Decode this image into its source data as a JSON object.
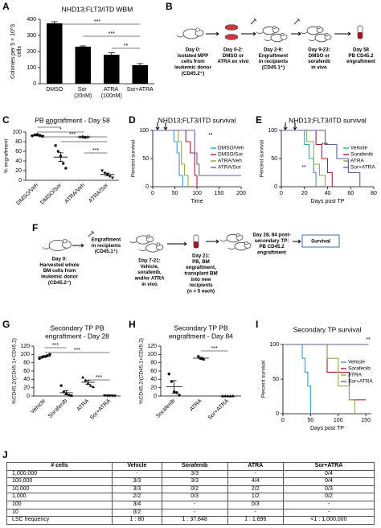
{
  "panel_labels": [
    "A",
    "B",
    "C",
    "D",
    "E",
    "F",
    "G",
    "H",
    "I",
    "J"
  ],
  "chart_data": [
    {
      "type": "bar",
      "title": "NHD13;FLT3/ITD WBM",
      "ylabel": [
        "Colonies per 5 × 10^3",
        "cells"
      ],
      "categories": [
        "DMSO",
        "Sor (20nM)",
        "ATRA (100nM)",
        "Sor+ATRA"
      ],
      "values": [
        375,
        230,
        180,
        115
      ],
      "errors": [
        10,
        5,
        12,
        10
      ],
      "color": "#000000",
      "ylim": [
        0,
        400
      ],
      "yticks": [
        0,
        100,
        200,
        300,
        400
      ],
      "annotations": [
        "***",
        "***",
        "**"
      ]
    },
    {
      "type": "dot",
      "title": "PB engraftment - Day 58",
      "ylabel": "% engraftment",
      "categories": [
        "DMSO/Veh",
        "DMSO/Sor",
        "ATRA/Veh",
        "ATRA/Sor"
      ],
      "points": [
        [
          92,
          94,
          95,
          93,
          91
        ],
        [
          72,
          60,
          50,
          35,
          25
        ],
        [
          90,
          91,
          89,
          90
        ],
        [
          20,
          15,
          12,
          8,
          5
        ]
      ],
      "means": [
        93,
        48,
        90,
        12
      ],
      "errors": [
        1,
        9,
        0.5,
        3
      ],
      "ylim": [
        0,
        100
      ],
      "yticks": [
        0,
        20,
        40,
        60,
        80,
        100
      ],
      "annotations": [
        "***",
        "*",
        "***",
        "**",
        "***"
      ]
    },
    {
      "type": "survival",
      "title": "NHD13;FLT3/ITD survival",
      "xlabel": "Time",
      "ylabel": "Percent survival",
      "xlim": [
        0,
        200
      ],
      "xticks": [
        0,
        50,
        100,
        150,
        200
      ],
      "ylim": [
        0,
        100
      ],
      "yticks": [
        0,
        50,
        100
      ],
      "series": [
        {
          "name": "DMSO/Veh",
          "color": "#3b9cc4",
          "x": [
            0,
            48,
            55,
            60,
            68
          ],
          "values": [
            100,
            80,
            60,
            20,
            0
          ]
        },
        {
          "name": "DMSO/Sor",
          "color": "#a3203f",
          "x": [
            0,
            75,
            85,
            95,
            100
          ],
          "values": [
            100,
            80,
            60,
            20,
            0
          ]
        },
        {
          "name": "ATRA/Veh",
          "color": "#93a84a",
          "x": [
            0,
            58,
            65,
            72,
            80
          ],
          "values": [
            100,
            80,
            40,
            20,
            0
          ]
        },
        {
          "name": "ATRA/Sor",
          "color": "#6d5a9c",
          "x": [
            0,
            95,
            100,
            105,
            200
          ],
          "values": [
            100,
            60,
            40,
            20,
            20
          ]
        }
      ],
      "annotations": [
        "**"
      ]
    },
    {
      "type": "survival",
      "title": "NHD13;FLT3/ITD survival",
      "xlabel": "Days post TP",
      "ylabel": "Percent survival",
      "xlim": [
        0,
        80
      ],
      "xticks": [
        0,
        20,
        40,
        60,
        80
      ],
      "ylim": [
        0,
        100
      ],
      "yticks": [
        0,
        50,
        100
      ],
      "series": [
        {
          "name": "Vehicle",
          "color": "#3b9cc4",
          "x": [
            0,
            20,
            24,
            28,
            30
          ],
          "values": [
            100,
            75,
            50,
            25,
            0
          ]
        },
        {
          "name": "Sorafenib",
          "color": "#a3203f",
          "x": [
            0,
            30,
            35,
            40,
            44
          ],
          "values": [
            100,
            75,
            50,
            25,
            0
          ]
        },
        {
          "name": "ATRA",
          "color": "#93a84a",
          "x": [
            0,
            22,
            28,
            33,
            38
          ],
          "values": [
            100,
            80,
            40,
            20,
            0
          ]
        },
        {
          "name": "Sor+ATRA",
          "color": "#6d5a9c",
          "x": [
            0,
            38,
            48,
            58,
            68
          ],
          "values": [
            100,
            75,
            50,
            25,
            0
          ]
        }
      ],
      "annotations": [
        "**",
        "***"
      ]
    },
    {
      "type": "dot",
      "title": [
        "Secondary TP PB",
        "engraftment - Day 28"
      ],
      "ylabel": "%CD45.2/(CD45.1+CD45.2)",
      "categories": [
        "Vehicle",
        "Sorafenib",
        "ATRA",
        "Sor+ATRA"
      ],
      "points": [
        [
          90,
          93,
          95,
          97,
          100
        ],
        [
          25,
          10,
          5,
          2,
          1
        ],
        [
          45,
          38,
          30,
          25,
          22
        ],
        [
          1,
          0.5,
          0.5,
          0.3,
          0.2
        ]
      ],
      "means": [
        95,
        8,
        33,
        0.5
      ],
      "errors": [
        2,
        5,
        5,
        0.2
      ],
      "ylim": [
        0,
        120
      ],
      "yticks": [
        0,
        20,
        40,
        60,
        80,
        100,
        120
      ],
      "annotations": [
        "***",
        "***",
        "***"
      ]
    },
    {
      "type": "dot",
      "title": [
        "Secondary TP PB",
        "engraftment - Day 84"
      ],
      "ylabel": "%CD45.2/(CD45.1+CD45.2)",
      "categories": [
        "Sorafenib",
        "ATRA",
        "Sor+ATRA"
      ],
      "points": [
        [
          53,
          35,
          10,
          8,
          2
        ],
        [
          95,
          90,
          88
        ],
        [
          0,
          0,
          0,
          0,
          0
        ]
      ],
      "means": [
        22,
        91,
        0
      ],
      "errors": [
        15,
        2,
        0
      ],
      "ylim": [
        0,
        120
      ],
      "yticks": [
        0,
        20,
        40,
        60,
        80,
        100,
        120
      ],
      "annotations": [
        "***"
      ]
    },
    {
      "type": "survival",
      "title": "Secondary TP survival",
      "xlabel": "Days post TP",
      "ylabel": "Percent survival",
      "xlim": [
        0,
        160
      ],
      "xticks": [
        0,
        50,
        100,
        150
      ],
      "ylim": [
        0,
        100
      ],
      "yticks": [
        0,
        50,
        100
      ],
      "series": [
        {
          "name": "Vehicle",
          "color": "#3b9cc4",
          "x": [
            0,
            35,
            40,
            45,
            50
          ],
          "values": [
            100,
            80,
            60,
            40,
            0
          ]
        },
        {
          "name": "Sorafenib",
          "color": "#a3203f",
          "x": [
            0,
            80,
            120,
            150
          ],
          "values": [
            100,
            60,
            20,
            20
          ]
        },
        {
          "name": "ATRA",
          "color": "#93a84a",
          "x": [
            0,
            80,
            100,
            120,
            130
          ],
          "values": [
            100,
            80,
            40,
            20,
            0
          ]
        },
        {
          "name": "Sor+ATRA",
          "color": "#6d5a9c",
          "x": [
            0,
            155
          ],
          "values": [
            100,
            100
          ]
        }
      ],
      "annotations": [
        "**"
      ]
    }
  ],
  "diagram_b": {
    "steps": [
      {
        "lines": [
          "Day 0:",
          "Isolated MPP",
          "cells from",
          "leukemic donor",
          "(CD45.2⁺)"
        ]
      },
      {
        "lines": [
          "Day 0-2:",
          "DMSO or",
          "ATRA ex vivo"
        ]
      },
      {
        "lines": [
          "Day 2-9:",
          "Engraftment",
          "in recipients",
          "(CD45.1⁺)"
        ]
      },
      {
        "lines": [
          "Day 9-23:",
          "DMSO or",
          "sorafenib",
          "in vivo"
        ]
      },
      {
        "lines": [
          "Day 58",
          "PB CD45.2",
          "engraftment"
        ]
      }
    ]
  },
  "diagram_f": {
    "steps": [
      {
        "lines": [
          "Day 0:",
          "Harvested whole",
          "BM cells from",
          "leukemic donor",
          "(CD45.2⁺)"
        ]
      },
      {
        "lines": [
          "Engraftment",
          "in recipients",
          "(CD45.1⁺)"
        ]
      },
      {
        "lines": [
          "Day 7-21:",
          "Vehicle,",
          "sorafenib,",
          "and/or ATRA",
          "in vivo"
        ]
      },
      {
        "lines": [
          "Day 21:",
          "PB, BM",
          "engraftment,",
          "transplant BM",
          "into new",
          "recipients",
          "(n = 5 each)"
        ]
      },
      {
        "lines": [
          "Day 28, 84 post-",
          "secondary TP:",
          "PB CD45.2",
          "engraftment"
        ]
      },
      {
        "lines": [
          "Survival"
        ]
      }
    ]
  },
  "table": {
    "header": [
      "# cells",
      "Vehicle",
      "Sorafenib",
      "ATRA",
      "Sor+ATRA"
    ],
    "rows": [
      [
        "1,000,000",
        "-",
        "3/3",
        "-",
        "0/4"
      ],
      [
        "100,000",
        "3/3",
        "3/3",
        "4/4",
        "0/4"
      ],
      [
        "10,000",
        "3/3",
        "0/2",
        "2/2",
        "0/3"
      ],
      [
        "1,000",
        "2/2",
        "0/3",
        "1/2",
        "0/2"
      ],
      [
        "100",
        "3/4",
        "-",
        "0/3",
        "-"
      ],
      [
        "10",
        "0/2",
        "-",
        "-",
        "-"
      ],
      [
        "LSC frequency",
        "1 : 80",
        "1 : 37,848",
        "1 : 1,696",
        "<1 : 1,000,000"
      ]
    ]
  }
}
